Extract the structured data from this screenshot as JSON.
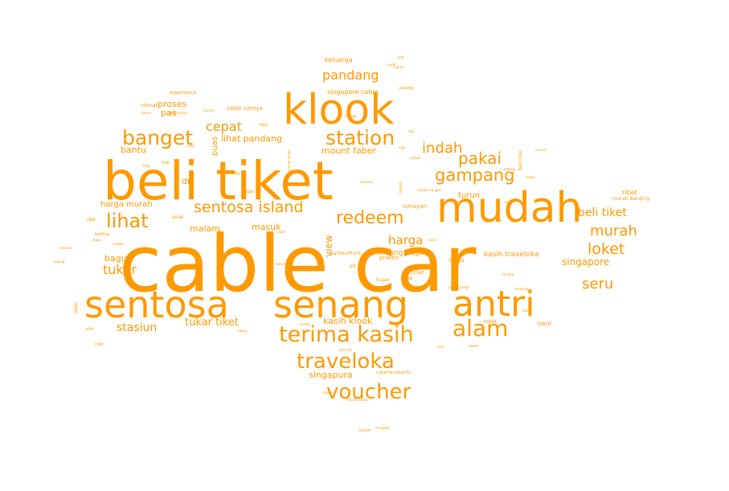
{
  "color": "#FF9900",
  "words": [
    {
      "text": "cable car",
      "weight": 1.0
    },
    {
      "text": "beli tiket",
      "weight": 0.82
    },
    {
      "text": "klook",
      "weight": 0.62
    },
    {
      "text": "mudah",
      "weight": 0.62
    },
    {
      "text": "sentosa",
      "weight": 0.57
    },
    {
      "text": "senang",
      "weight": 0.57
    },
    {
      "text": "antri",
      "weight": 0.52
    },
    {
      "text": "alam",
      "weight": 0.35
    },
    {
      "text": "terima kasih",
      "weight": 0.34
    },
    {
      "text": "banget",
      "weight": 0.32
    },
    {
      "text": "station",
      "weight": 0.31
    },
    {
      "text": "traveloka",
      "weight": 0.32
    },
    {
      "text": "voucher",
      "weight": 0.32
    },
    {
      "text": "lihat",
      "weight": 0.3
    },
    {
      "text": "redeem",
      "weight": 0.27
    },
    {
      "text": "gampang",
      "weight": 0.26
    },
    {
      "text": "pakai",
      "weight": 0.25
    },
    {
      "text": "sentosa island",
      "weight": 0.24
    },
    {
      "text": "loket",
      "weight": 0.24
    },
    {
      "text": "murah",
      "weight": 0.22
    },
    {
      "text": "seru",
      "weight": 0.22
    },
    {
      "text": "indah",
      "weight": 0.22
    },
    {
      "text": "pandang",
      "weight": 0.2
    },
    {
      "text": "cepat",
      "weight": 0.2
    },
    {
      "text": "tukar",
      "weight": 0.2
    },
    {
      "text": "harga",
      "weight": 0.19
    },
    {
      "text": "beli tiket",
      "weight": 0.17
    },
    {
      "text": "stasiun",
      "weight": 0.17
    },
    {
      "text": "tukar tiket",
      "weight": 0.16
    },
    {
      "text": "singapore",
      "weight": 0.15
    },
    {
      "text": "view",
      "weight": 0.15
    },
    {
      "text": "mount faber",
      "weight": 0.13
    },
    {
      "text": "singapura",
      "weight": 0.13
    },
    {
      "text": "kasih klook",
      "weight": 0.13
    },
    {
      "text": "lihat pandang",
      "weight": 0.13
    },
    {
      "text": "bantu",
      "weight": 0.13
    },
    {
      "text": "proses",
      "weight": 0.14
    },
    {
      "text": "pas",
      "weight": 0.14
    },
    {
      "text": "malam",
      "weight": 0.13
    },
    {
      "text": "masuk",
      "weight": 0.13
    },
    {
      "text": "bagus",
      "weight": 0.13
    },
    {
      "text": "harga murah",
      "weight": 0.12
    },
    {
      "text": "turun",
      "weight": 0.12
    },
    {
      "text": "puas",
      "weight": 0.12
    },
    {
      "text": "dr",
      "weight": 0.13
    },
    {
      "text": "pandang bagus",
      "weight": 0.1
    },
    {
      "text": "kasih traveloka",
      "weight": 0.1
    },
    {
      "text": "ribet",
      "weight": 0.09
    },
    {
      "text": "keluarga",
      "weight": 0.08
    },
    {
      "text": "singapore cable",
      "weight": 0.08
    },
    {
      "text": "cable carnya",
      "weight": 0.07
    },
    {
      "text": "lumayan",
      "weight": 0.08
    },
    {
      "text": "praktis",
      "weight": 0.08
    },
    {
      "text": "nyata",
      "weight": 0.08
    },
    {
      "text": "coba",
      "weight": 0.08
    },
    {
      "text": "takut",
      "weight": 0.08
    },
    {
      "text": "experience",
      "weight": 0.07
    },
    {
      "text": "nikmat",
      "weight": 0.07
    },
    {
      "text": "harbourfront",
      "weight": 0.07
    },
    {
      "text": "barcode",
      "weight": 0.07
    },
    {
      "text": "murah banding",
      "weight": 0.07
    },
    {
      "text": "ticket",
      "weight": 0.07
    },
    {
      "text": "hujan",
      "weight": 0.07
    },
    {
      "text": "agak",
      "weight": 0.07
    },
    {
      "text": "sih",
      "weight": 0.07
    },
    {
      "text": "oke",
      "weight": 0.07
    },
    {
      "text": "anak",
      "weight": 0.07
    },
    {
      "text": "keliling",
      "weight": 0.06
    },
    {
      "text": "lupa",
      "weight": 0.07
    },
    {
      "text": "foto",
      "weight": 0.06
    },
    {
      "text": "pulang",
      "weight": 0.06
    },
    {
      "text": "tuju",
      "weight": 0.06
    },
    {
      "text": "trip",
      "weight": 0.06
    },
    {
      "text": "fisik",
      "weight": 0.06
    },
    {
      "text": "pilih",
      "weight": 0.06
    },
    {
      "text": "bayar",
      "weight": 0.06
    },
    {
      "text": "keren",
      "weight": 0.06
    },
    {
      "text": "jalan",
      "weight": 0.07
    },
    {
      "text": "sukacita sukacita",
      "weight": 0.06
    },
    {
      "text": "pulang pergi",
      "weight": 0.05
    },
    {
      "text": "universal studio",
      "weight": 0.05
    },
    {
      "text": "imbiah",
      "weight": 0.05
    },
    {
      "text": "pesan",
      "weight": 0.05
    },
    {
      "text": "rekomendasi",
      "weight": 0.05
    },
    {
      "text": "mungkin",
      "weight": 0.05
    },
    {
      "text": "kasih",
      "weight": 0.05
    },
    {
      "text": "tujuan",
      "weight": 0.05
    },
    {
      "text": "bawa",
      "weight": 0.05
    },
    {
      "text": "counter",
      "weight": 0.04
    },
    {
      "text": "amazing",
      "weight": 0.04
    },
    {
      "text": "jelas",
      "weight": 0.04
    },
    {
      "text": "libur",
      "weight": 0.04
    },
    {
      "text": "dalam",
      "weight": 0.04
    },
    {
      "text": "vivo city",
      "weight": 0.04
    },
    {
      "text": "makan",
      "weight": 0.04
    },
    {
      "text": "makan teman",
      "weight": 0.04
    },
    {
      "text": "kereta",
      "weight": 0.04
    },
    {
      "text": "merlion",
      "weight": 0.04
    },
    {
      "text": "sangat",
      "weight": 0.04
    },
    {
      "text": "tiba",
      "weight": 0.04
    },
    {
      "text": "naik",
      "weight": 0.04
    },
    {
      "text": "sayang",
      "weight": 0.04
    },
    {
      "text": "enjoy",
      "weight": 0.04
    },
    {
      "text": "unik",
      "weight": 0.04
    },
    {
      "text": "tempat",
      "weight": 0.04
    },
    {
      "text": "datang",
      "weight": 0.04
    },
    {
      "text": "kali",
      "weight": 0.04
    },
    {
      "text": "tanya",
      "weight": 0.04
    },
    {
      "text": "hingga",
      "weight": 0.04
    },
    {
      "text": "staff",
      "weight": 0.04
    },
    {
      "text": "bener",
      "weight": 0.04
    },
    {
      "text": "cepet",
      "weight": 0.04
    },
    {
      "text": "sunset",
      "weight": 0.04
    },
    {
      "text": "mudah banget",
      "weight": 0.03
    },
    {
      "text": "ramai",
      "weight": 0.03
    },
    {
      "text": "nyaman",
      "weight": 0.03
    },
    {
      "text": "kasir",
      "weight": 0.03
    },
    {
      "text": "rute",
      "weight": 0.04
    }
  ]
}
